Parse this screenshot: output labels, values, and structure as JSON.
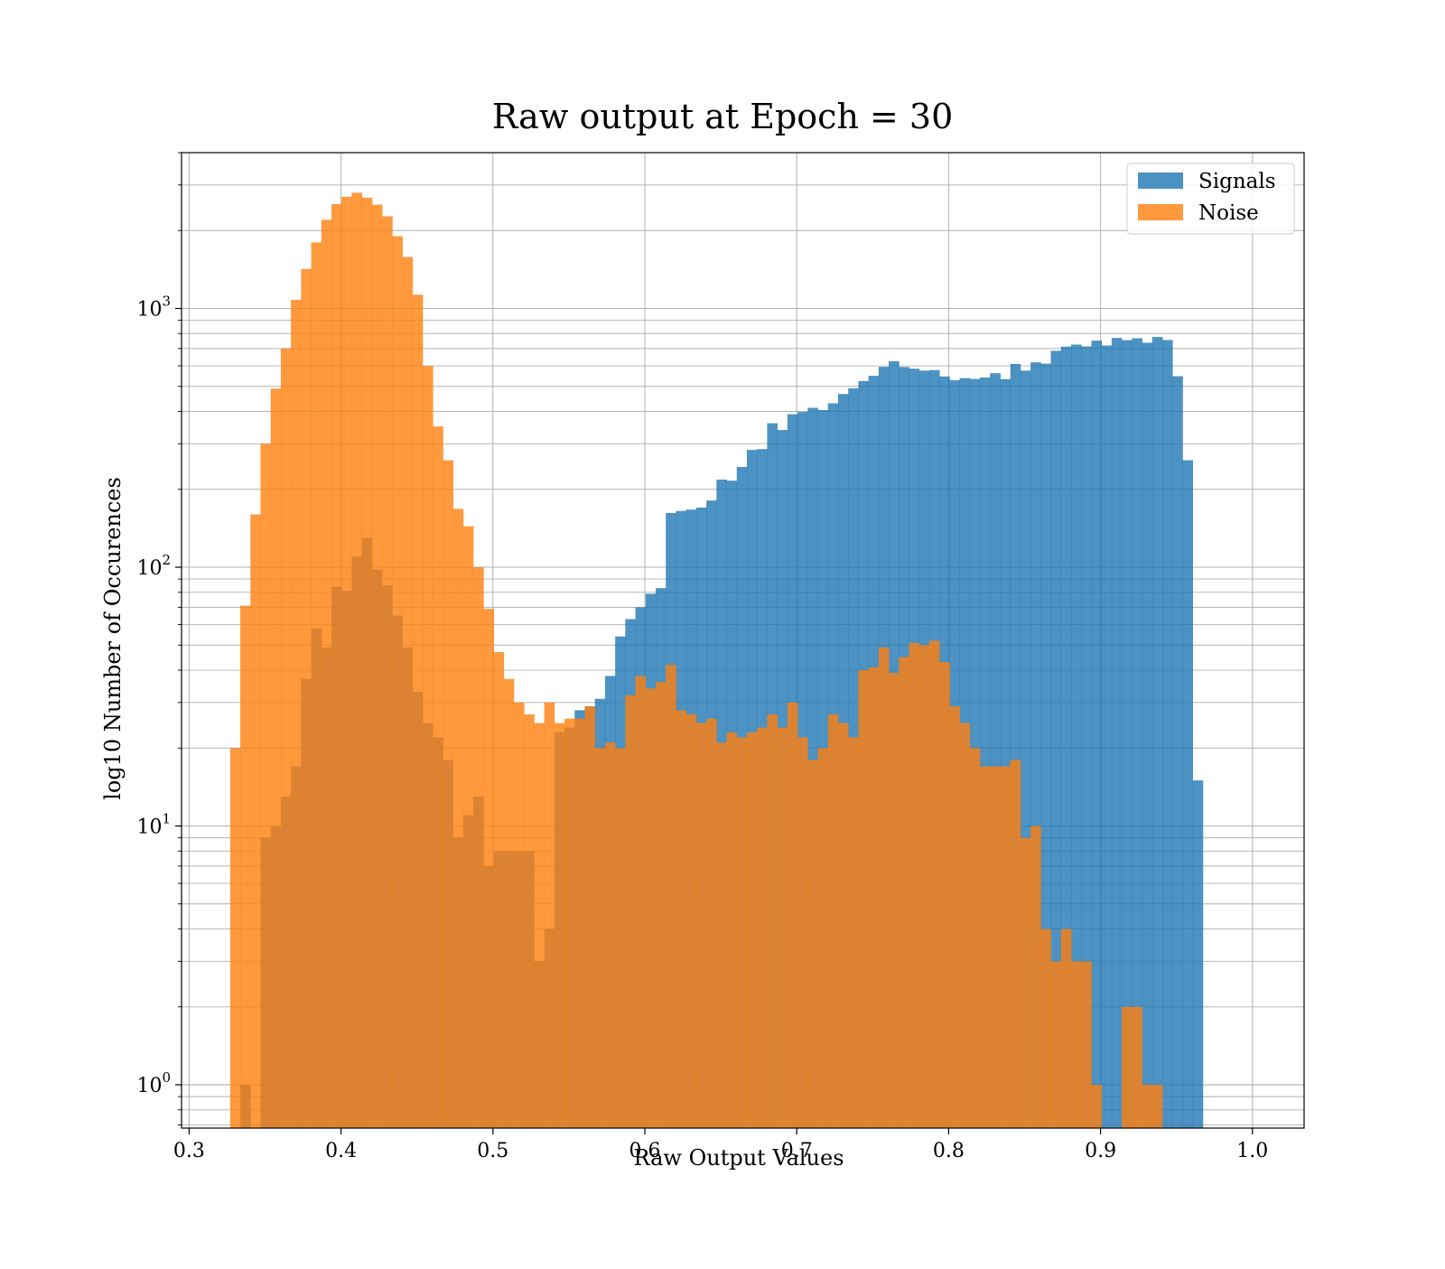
{
  "chart_data": {
    "type": "bar",
    "title": "Raw output at Epoch = 30",
    "xlabel": "Raw Output Values",
    "ylabel": "log10 Number of Occurences",
    "xlim": [
      0.295,
      1.034
    ],
    "ylim": [
      0.68,
      4000
    ],
    "yscale": "log",
    "grid": "both (major and minor)",
    "legend_position": "top-right",
    "x_ticks": [
      "0.3",
      "0.4",
      "0.5",
      "0.6",
      "0.7",
      "0.8",
      "0.9",
      "1.0"
    ],
    "y_ticks": [
      {
        "base": "10",
        "exp": "0",
        "value": 1
      },
      {
        "base": "10",
        "exp": "1",
        "value": 10
      },
      {
        "base": "10",
        "exp": "2",
        "value": 100
      },
      {
        "base": "10",
        "exp": "3",
        "value": 1000
      }
    ],
    "bin_start": 0.327,
    "bin_width": 0.00667,
    "series": [
      {
        "name": "Signals",
        "color": "#1f77b4",
        "opacity": 0.8,
        "values": [
          0,
          1,
          0,
          9,
          10,
          13,
          17,
          37,
          58,
          49,
          84,
          81,
          110,
          130,
          98,
          85,
          65,
          49,
          33,
          25,
          22,
          18,
          9,
          11,
          13,
          7,
          8,
          8,
          8,
          8,
          3,
          4,
          23,
          24,
          28,
          29,
          31,
          38,
          54,
          63,
          70,
          79,
          83,
          162,
          165,
          167,
          170,
          181,
          218,
          216,
          244,
          284,
          286,
          360,
          339,
          390,
          398,
          413,
          405,
          430,
          467,
          491,
          524,
          549,
          595,
          625,
          594,
          585,
          575,
          578,
          546,
          528,
          538,
          534,
          541,
          562,
          533,
          610,
          575,
          619,
          612,
          686,
          712,
          725,
          713,
          751,
          719,
          769,
          754,
          767,
          737,
          776,
          755,
          547,
          259,
          15,
          0,
          0
        ]
      },
      {
        "name": "Noise",
        "color": "#ff7f0e",
        "opacity": 0.8,
        "values": [
          20,
          71,
          160,
          300,
          490,
          700,
          1080,
          1420,
          1800,
          2200,
          2530,
          2700,
          2800,
          2680,
          2520,
          2270,
          1900,
          1580,
          1130,
          598,
          350,
          259,
          168,
          144,
          100,
          69,
          47,
          37,
          30,
          27,
          25,
          30,
          25,
          26,
          26,
          29,
          20,
          21,
          20,
          32,
          38,
          34,
          36,
          42,
          28,
          27,
          25,
          26,
          21,
          23,
          22,
          23,
          24,
          27,
          24,
          30,
          22,
          18,
          20,
          27,
          25,
          22,
          40,
          41,
          49,
          39,
          45,
          51,
          50,
          52,
          43,
          29,
          25,
          20,
          17,
          17,
          17,
          18,
          9,
          10,
          4,
          3,
          4,
          3,
          3,
          1,
          0,
          0,
          2,
          2,
          1,
          1,
          0,
          0,
          0,
          0,
          0,
          0
        ]
      }
    ]
  }
}
